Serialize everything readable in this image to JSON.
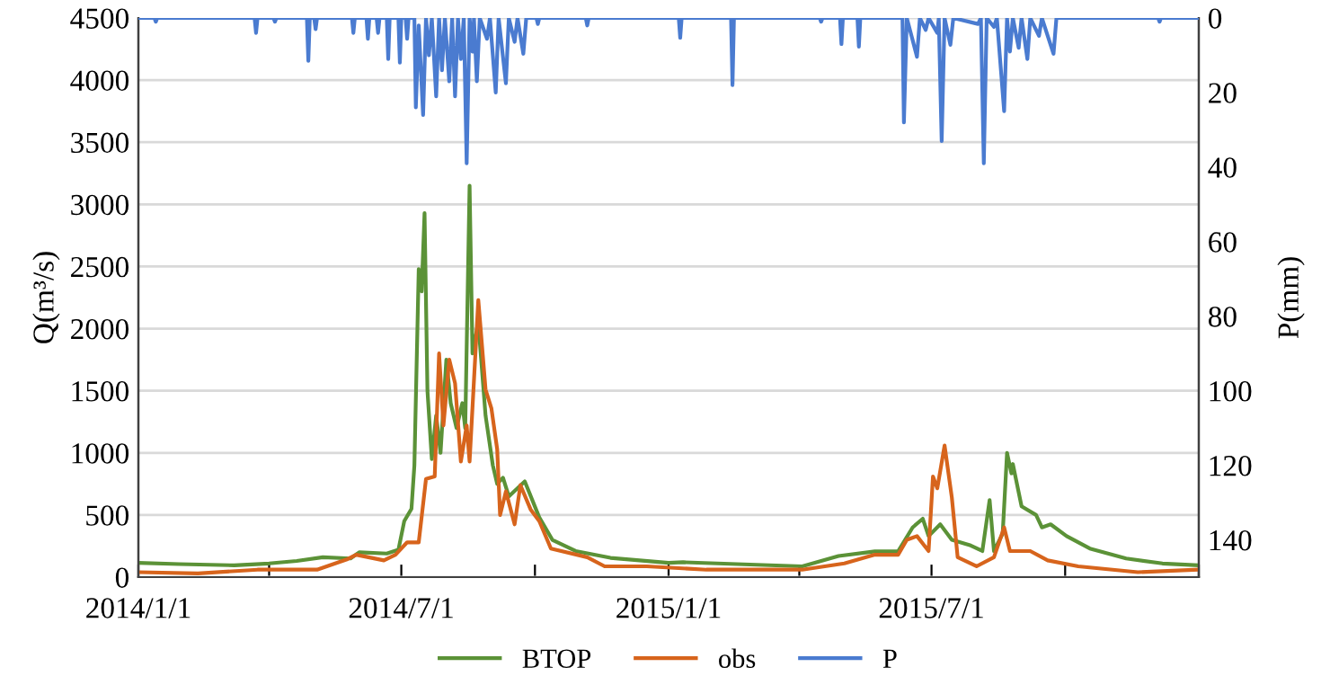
{
  "chart_data": {
    "type": "line",
    "ylabel": "Q(m³/s)",
    "y2label": "P(mm)",
    "xlim": [
      "2014-01-01",
      "2016-01-01"
    ],
    "xticks": [
      {
        "value": "2014-01-01",
        "label": "2014/1/1"
      },
      {
        "value": "2014-04-01",
        "label": null
      },
      {
        "value": "2014-07-01",
        "label": "2014/7/1"
      },
      {
        "value": "2014-10-01",
        "label": null
      },
      {
        "value": "2015-01-01",
        "label": "2015/1/1"
      },
      {
        "value": "2015-04-01",
        "label": null
      },
      {
        "value": "2015-07-01",
        "label": "2015/7/1"
      },
      {
        "value": "2015-10-01",
        "label": null
      },
      {
        "value": "2016-01-01",
        "label": null
      }
    ],
    "ylim": [
      0,
      4500
    ],
    "yticks": [
      0,
      500,
      1000,
      1500,
      2000,
      2500,
      3000,
      3500,
      4000,
      4500
    ],
    "y2lim": [
      150,
      0
    ],
    "y2ticks": [
      0,
      20,
      40,
      60,
      80,
      100,
      120,
      140
    ],
    "grid": "y",
    "legend": "bottom",
    "marker": "none",
    "line_style": "solid",
    "series": [
      {
        "name": "BTOP",
        "color": "#5b9237",
        "x": [
          "2014-01-01",
          "2014-01-29",
          "2014-03-08",
          "2014-04-01",
          "2014-04-20",
          "2014-05-08",
          "2014-05-27",
          "2014-06-02",
          "2014-06-21",
          "2014-06-29",
          "2014-07-03",
          "2014-07-08",
          "2014-07-10",
          "2014-07-13",
          "2014-07-15",
          "2014-07-17",
          "2014-07-19",
          "2014-07-22",
          "2014-07-25",
          "2014-07-28",
          "2014-08-01",
          "2014-08-04",
          "2014-08-08",
          "2014-08-12",
          "2014-08-14",
          "2014-08-17",
          "2014-08-19",
          "2014-08-23",
          "2014-08-28",
          "2014-09-02",
          "2014-09-05",
          "2014-09-09",
          "2014-09-13",
          "2014-09-24",
          "2014-10-04",
          "2014-10-13",
          "2014-10-29",
          "2014-11-22",
          "2015-01-01",
          "2015-01-11",
          "2015-04-03",
          "2015-04-28",
          "2015-05-23",
          "2015-06-08",
          "2015-06-18",
          "2015-06-25",
          "2015-06-29",
          "2015-07-07",
          "2015-07-15",
          "2015-07-28",
          "2015-08-05",
          "2015-08-10",
          "2015-08-13",
          "2015-08-19",
          "2015-08-22",
          "2015-08-25",
          "2015-08-26",
          "2015-09-01",
          "2015-09-11",
          "2015-09-15",
          "2015-09-21",
          "2015-10-02",
          "2015-10-18",
          "2015-11-12",
          "2015-12-07",
          "2015-12-31"
        ],
        "values": [
          115,
          105,
          95,
          110,
          130,
          160,
          150,
          200,
          190,
          220,
          450,
          550,
          900,
          2480,
          2300,
          2930,
          1500,
          950,
          1300,
          1000,
          1750,
          1400,
          1200,
          1400,
          1200,
          3150,
          1800,
          2050,
          1300,
          900,
          750,
          800,
          650,
          770,
          480,
          300,
          210,
          155,
          115,
          120,
          87,
          170,
          207,
          207,
          400,
          470,
          330,
          425,
          300,
          255,
          210,
          620,
          210,
          350,
          1000,
          835,
          910,
          570,
          500,
          400,
          425,
          330,
          230,
          150,
          110,
          95
        ]
      },
      {
        "name": "obs",
        "color": "#d7641c",
        "x": [
          "2014-01-01",
          "2014-02-11",
          "2014-03-24",
          "2014-05-04",
          "2014-05-25",
          "2014-05-31",
          "2014-06-19",
          "2014-06-27",
          "2014-07-05",
          "2014-07-13",
          "2014-07-18",
          "2014-07-24",
          "2014-07-27",
          "2014-07-30",
          "2014-08-03",
          "2014-08-07",
          "2014-08-11",
          "2014-08-15",
          "2014-08-17",
          "2014-08-23",
          "2014-08-28",
          "2014-09-01",
          "2014-09-05",
          "2014-09-07",
          "2014-09-11",
          "2014-09-17",
          "2014-09-21",
          "2014-09-28",
          "2014-10-04",
          "2014-10-12",
          "2014-11-06",
          "2014-11-18",
          "2014-12-17",
          "2015-01-27",
          "2015-02-21",
          "2015-04-03",
          "2015-05-02",
          "2015-05-23",
          "2015-06-08",
          "2015-06-14",
          "2015-06-21",
          "2015-06-29",
          "2015-07-02",
          "2015-07-05",
          "2015-07-10",
          "2015-07-15",
          "2015-07-19",
          "2015-08-01",
          "2015-08-13",
          "2015-08-20",
          "2015-08-24",
          "2015-09-07",
          "2015-09-19",
          "2015-10-10",
          "2015-11-20",
          "2015-12-31"
        ],
        "values": [
          40,
          30,
          60,
          60,
          145,
          180,
          135,
          180,
          280,
          280,
          790,
          810,
          1800,
          1220,
          1750,
          1560,
          930,
          1220,
          930,
          2230,
          1510,
          1360,
          1030,
          500,
          690,
          425,
          740,
          545,
          450,
          230,
          160,
          87,
          87,
          60,
          60,
          60,
          110,
          180,
          180,
          300,
          330,
          210,
          810,
          715,
          1060,
          640,
          160,
          87,
          160,
          400,
          210,
          210,
          135,
          87,
          40,
          60
        ]
      },
      {
        "name": "P",
        "color": "#4a7bd0",
        "axis": "y2",
        "x": [
          "2014-01-01",
          "2014-01-12",
          "2014-01-13",
          "2014-01-14",
          "2014-03-22",
          "2014-03-23",
          "2014-03-24",
          "2014-04-04",
          "2014-04-05",
          "2014-04-06",
          "2014-04-27",
          "2014-04-28",
          "2014-04-29",
          "2014-05-02",
          "2014-05-03",
          "2014-05-04",
          "2014-05-28",
          "2014-05-29",
          "2014-05-30",
          "2014-06-07",
          "2014-06-08",
          "2014-06-09",
          "2014-06-14",
          "2014-06-15",
          "2014-06-16",
          "2014-06-21",
          "2014-06-22",
          "2014-06-23",
          "2014-06-29",
          "2014-06-30",
          "2014-07-01",
          "2014-07-04",
          "2014-07-05",
          "2014-07-06",
          "2014-07-10",
          "2014-07-11",
          "2014-07-13",
          "2014-07-16",
          "2014-07-18",
          "2014-07-20",
          "2014-07-22",
          "2014-07-25",
          "2014-07-27",
          "2014-07-29",
          "2014-07-31",
          "2014-08-03",
          "2014-08-05",
          "2014-08-07",
          "2014-08-09",
          "2014-08-11",
          "2014-08-13",
          "2014-08-15",
          "2014-08-17",
          "2014-08-19",
          "2014-08-20",
          "2014-08-22",
          "2014-08-24",
          "2014-08-29",
          "2014-08-31",
          "2014-09-04",
          "2014-09-06",
          "2014-09-11",
          "2014-09-13",
          "2014-09-17",
          "2014-09-19",
          "2014-09-23",
          "2014-09-25",
          "2014-10-02",
          "2014-10-03",
          "2014-10-04",
          "2014-11-05",
          "2014-11-06",
          "2014-11-07",
          "2015-01-08",
          "2015-01-09",
          "2015-01-10",
          "2015-02-13",
          "2015-02-14",
          "2015-02-15",
          "2015-04-15",
          "2015-04-16",
          "2015-04-17",
          "2015-04-29",
          "2015-04-30",
          "2015-05-01",
          "2015-05-11",
          "2015-05-12",
          "2015-05-13",
          "2015-06-11",
          "2015-06-12",
          "2015-06-14",
          "2015-06-21",
          "2015-06-23",
          "2015-06-27",
          "2015-06-29",
          "2015-07-05",
          "2015-07-06",
          "2015-07-08",
          "2015-07-10",
          "2015-07-14",
          "2015-07-16",
          "2015-08-02",
          "2015-08-04",
          "2015-08-06",
          "2015-08-08",
          "2015-08-13",
          "2015-08-15",
          "2015-08-20",
          "2015-08-22",
          "2015-08-24",
          "2015-08-26",
          "2015-08-30",
          "2015-09-01",
          "2015-09-05",
          "2015-09-07",
          "2015-09-13",
          "2015-09-15",
          "2015-09-23",
          "2015-09-25",
          "2015-12-04",
          "2015-12-05",
          "2015-12-06",
          "2015-12-31"
        ],
        "values": [
          0,
          0,
          1,
          0,
          0,
          4,
          0,
          0,
          1,
          0,
          0,
          11.5,
          0,
          0,
          3,
          0,
          0,
          4,
          0,
          0,
          5.6,
          0,
          0,
          4,
          0,
          0,
          11,
          0,
          0,
          12,
          0,
          0,
          5.6,
          0,
          0,
          24,
          2,
          26,
          0,
          10,
          0,
          21,
          0,
          14,
          0,
          17,
          0,
          21,
          0,
          11,
          0,
          39,
          0,
          9,
          0,
          17,
          0,
          5.6,
          0,
          20,
          0,
          17.5,
          0,
          6.4,
          0,
          9.6,
          0,
          0,
          1.6,
          0,
          0,
          2,
          0,
          0,
          5.3,
          0,
          0,
          18,
          0,
          0,
          1,
          0,
          0,
          7,
          0,
          0,
          7.7,
          0,
          0,
          28,
          0,
          10.4,
          0,
          3.2,
          0,
          4,
          0,
          33,
          0,
          7.2,
          0,
          1.6,
          0,
          39,
          0,
          2.4,
          0,
          25,
          0,
          9,
          0,
          8,
          0,
          11,
          0,
          4.8,
          0,
          9.6,
          0,
          0,
          1,
          0,
          0
        ]
      }
    ]
  }
}
